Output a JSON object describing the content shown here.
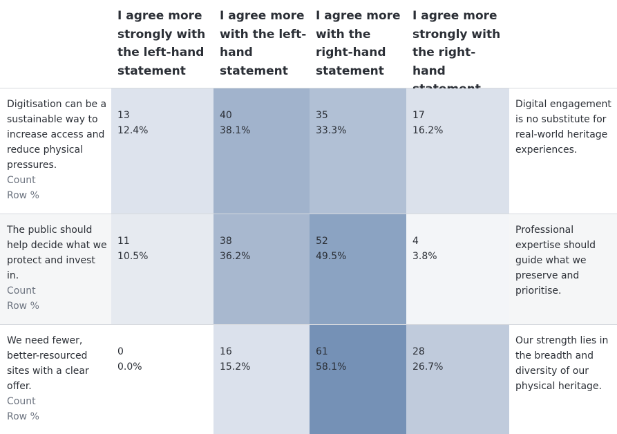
{
  "chart_data": {
    "type": "table",
    "columns": [
      "I agree more strongly with the left-hand statement",
      "I agree more with the left-hand statement",
      "I agree more with the right-hand statement",
      "I agree more strongly with the right-hand statement"
    ],
    "rows": [
      {
        "left": "Digitisation can be a sustainable way to increase access and reduce physical pressures.",
        "right": "Digital engagement is no substitute for real-world heritage experiences.",
        "count_label": "Count",
        "pct_label": "Row %",
        "cells": [
          {
            "count": "13",
            "pct": "12.4%",
            "value": 12.4,
            "color": "#dde3ed"
          },
          {
            "count": "40",
            "pct": "38.1%",
            "value": 38.1,
            "color": "#a1b3cc"
          },
          {
            "count": "35",
            "pct": "33.3%",
            "value": 33.3,
            "color": "#b1c0d5"
          },
          {
            "count": "17",
            "pct": "16.2%",
            "value": 16.2,
            "color": "#dbe1eb"
          }
        ],
        "row_bg": "#ffffff"
      },
      {
        "left": "The public should help decide what we protect and invest in.",
        "right": "Professional expertise should guide what we preserve and prioritise.",
        "count_label": "Count",
        "pct_label": "Row %",
        "cells": [
          {
            "count": "11",
            "pct": "10.5%",
            "value": 10.5,
            "color": "#e6eaf0"
          },
          {
            "count": "38",
            "pct": "36.2%",
            "value": 36.2,
            "color": "#a8b8cf"
          },
          {
            "count": "52",
            "pct": "49.5%",
            "value": 49.5,
            "color": "#8ba3c2"
          },
          {
            "count": "4",
            "pct": "3.8%",
            "value": 3.8,
            "color": "#f3f5f8"
          }
        ],
        "row_bg": "#f5f6f7"
      },
      {
        "left": "We need fewer, better-resourced sites with a clear offer.",
        "right": "Our strength lies in the breadth and diversity of our physical heritage.",
        "count_label": "Count",
        "pct_label": "Row %",
        "cells": [
          {
            "count": "0",
            "pct": "0.0%",
            "value": 0.0,
            "color": "#ffffff"
          },
          {
            "count": "16",
            "pct": "15.2%",
            "value": 15.2,
            "color": "#dbe1ec"
          },
          {
            "count": "61",
            "pct": "58.1%",
            "value": 58.1,
            "color": "#7591b6"
          },
          {
            "count": "28",
            "pct": "26.7%",
            "value": 26.7,
            "color": "#c0cbdc"
          }
        ],
        "row_bg": "#ffffff"
      }
    ]
  }
}
